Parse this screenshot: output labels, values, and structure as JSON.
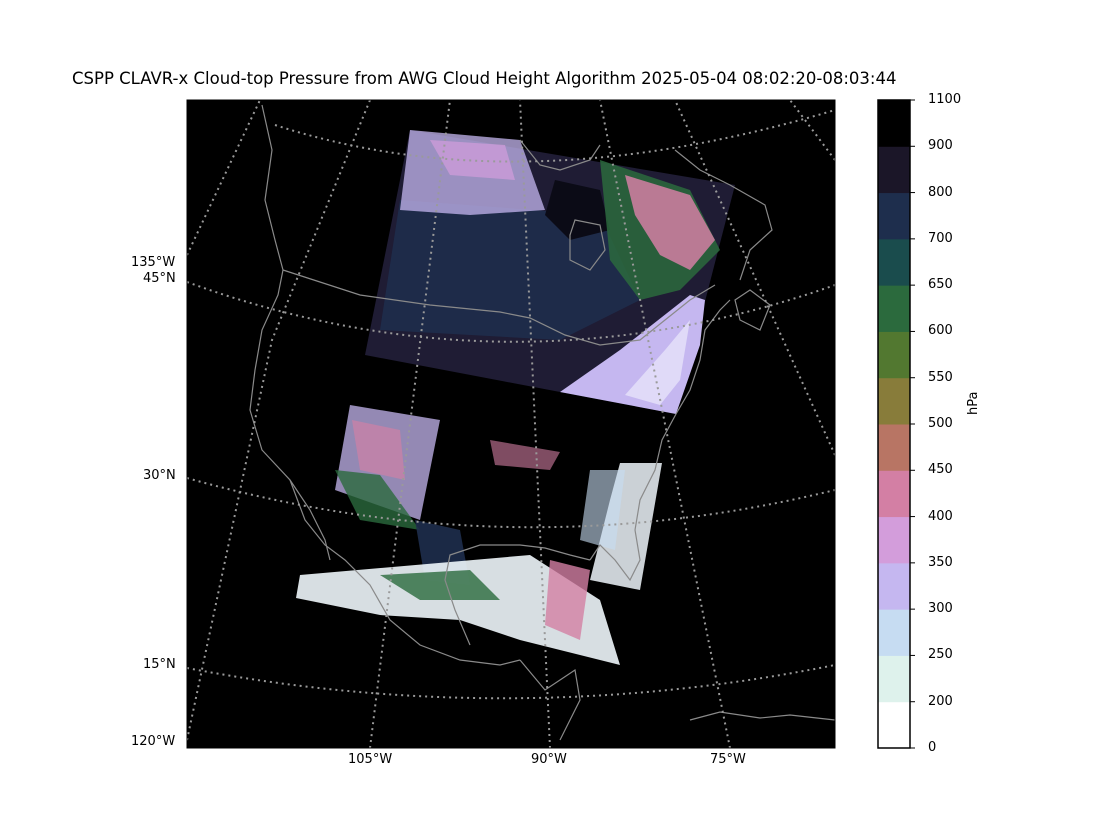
{
  "title": "CSPP CLAVR-x Cloud-top Pressure from AWG Cloud Height Algorithm 2025-05-04 08:02:20-08:03:44",
  "map": {
    "lat_labels": [
      "45°N",
      "30°N",
      "15°N"
    ],
    "lon_labels_left": [
      "135°W",
      "120°W"
    ],
    "lon_labels_bottom": [
      "105°W",
      "90°W",
      "75°W"
    ]
  },
  "colorbar": {
    "unit": "hPa",
    "ticks": [
      "0",
      "200",
      "250",
      "300",
      "350",
      "400",
      "450",
      "500",
      "550",
      "600",
      "650",
      "700",
      "800",
      "900",
      "1100"
    ],
    "colors": [
      "#ffffff",
      "#def2ec",
      "#c6dcf2",
      "#c5b7f0",
      "#d39ddb",
      "#d37fa4",
      "#b87564",
      "#887c3a",
      "#527830",
      "#2b6a3d",
      "#1a4c4d",
      "#1e2e4d",
      "#1b1628",
      "#000000"
    ]
  },
  "colors": {
    "ocean": "#000000",
    "coastline": "#8a8a8a",
    "graticule": "#9a9a9a",
    "cloud_deep": "#1f1c34",
    "cloud_mid": "#1e2e4d",
    "cloud_high": "#c5b7f0",
    "cloud_pink": "#d37fa4",
    "cloud_green": "#2b6a3d",
    "cloud_white": "#eef6fb"
  }
}
